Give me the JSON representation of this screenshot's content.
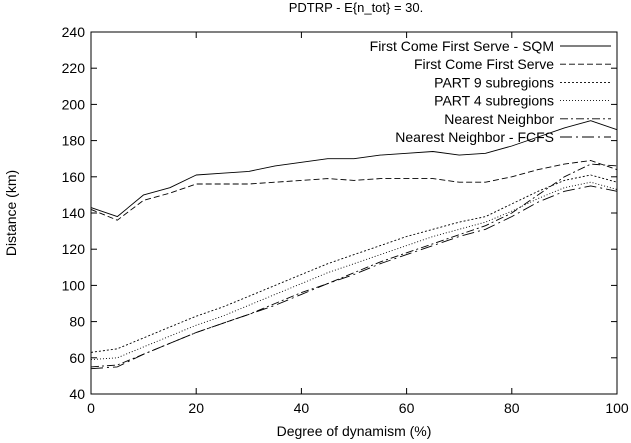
{
  "chart_data": {
    "type": "line",
    "title": "PDTRP - E{n_tot} = 30.",
    "xlabel": "Degree of dynamism (%)",
    "ylabel": "Distance (km)",
    "xlim": [
      0,
      100
    ],
    "ylim": [
      40,
      240
    ],
    "xticks": [
      0,
      20,
      40,
      60,
      80,
      100
    ],
    "yticks": [
      40,
      60,
      80,
      100,
      120,
      140,
      160,
      180,
      200,
      220,
      240
    ],
    "grid": false,
    "legend_position": "top-right",
    "x": [
      0,
      5,
      10,
      15,
      20,
      25,
      30,
      35,
      40,
      45,
      50,
      55,
      60,
      65,
      70,
      75,
      80,
      85,
      90,
      95,
      100
    ],
    "series": [
      {
        "name": "First Come First Serve - SQM",
        "dash": "solid",
        "values": [
          143,
          138,
          150,
          154,
          161,
          162,
          163,
          166,
          168,
          170,
          170,
          172,
          173,
          174,
          172,
          173,
          177,
          182,
          187,
          191,
          186
        ]
      },
      {
        "name": "First Come First Serve",
        "dash": "dashed",
        "values": [
          142,
          136,
          147,
          151,
          156,
          156,
          156,
          157,
          158,
          159,
          158,
          159,
          159,
          159,
          157,
          157,
          160,
          164,
          167,
          169,
          164
        ]
      },
      {
        "name": "PART 9 subregions",
        "dash": "dotted-dense",
        "values": [
          63,
          65,
          71,
          77,
          83,
          88,
          94,
          100,
          106,
          112,
          117,
          122,
          127,
          131,
          135,
          138,
          145,
          152,
          158,
          161,
          157
        ]
      },
      {
        "name": "PART 4 subregions",
        "dash": "dotted",
        "values": [
          59,
          60,
          66,
          72,
          78,
          83,
          89,
          95,
          101,
          107,
          112,
          117,
          122,
          127,
          131,
          135,
          141,
          148,
          154,
          157,
          153
        ]
      },
      {
        "name": "Nearest Neighbor",
        "dash": "dashdot",
        "values": [
          55,
          56,
          62,
          68,
          74,
          79,
          84,
          90,
          96,
          101,
          107,
          113,
          118,
          123,
          128,
          133,
          140,
          150,
          160,
          167,
          166
        ]
      },
      {
        "name": "Nearest Neighbor - FCFS",
        "dash": "dashdot-long",
        "values": [
          54,
          55,
          62,
          68,
          74,
          79,
          84,
          89,
          95,
          101,
          106,
          112,
          117,
          122,
          127,
          131,
          138,
          146,
          152,
          155,
          152
        ]
      }
    ]
  }
}
